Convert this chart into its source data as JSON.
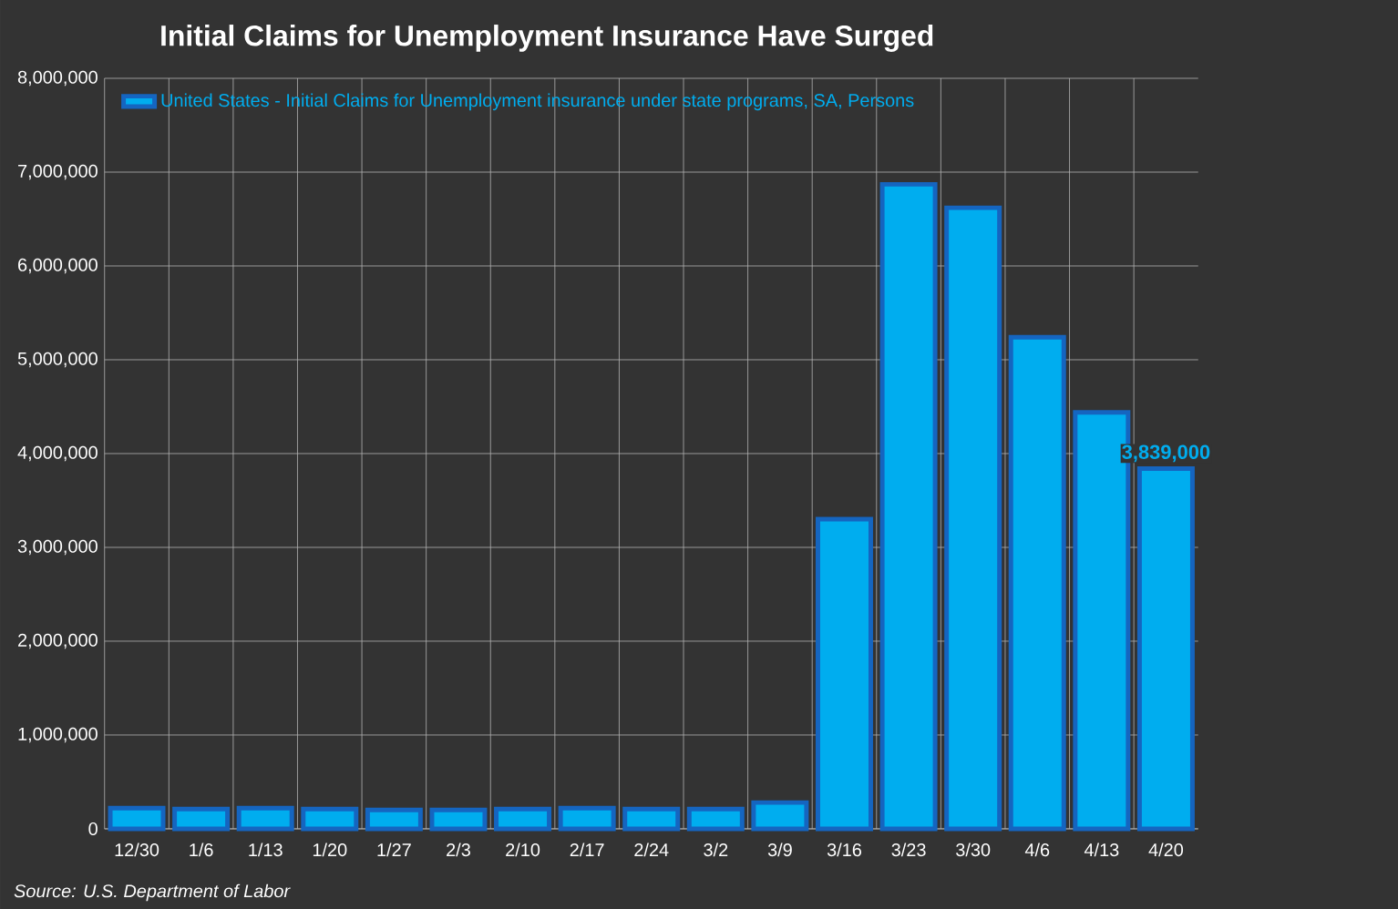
{
  "chart_data": {
    "type": "bar",
    "title": "Initial Claims for Unemployment Insurance Have Surged",
    "categories": [
      "12/30",
      "1/6",
      "1/13",
      "1/20",
      "1/27",
      "2/3",
      "2/10",
      "2/17",
      "2/24",
      "3/2",
      "3/9",
      "3/16",
      "3/23",
      "3/30",
      "4/6",
      "4/13",
      "4/20"
    ],
    "series": [
      {
        "name": "United States - Initial Claims for Unemployment insurance under state programs, SA, Persons",
        "color": "#00adef",
        "values": [
          220000,
          210000,
          220000,
          210000,
          200000,
          200000,
          210000,
          220000,
          210000,
          210000,
          280000,
          3300000,
          6870000,
          6620000,
          5240000,
          4440000,
          3839000
        ],
        "value_labels": [
          null,
          null,
          null,
          null,
          null,
          null,
          null,
          null,
          null,
          null,
          null,
          null,
          null,
          null,
          null,
          null,
          "3,839,000"
        ]
      }
    ],
    "ylim": [
      0,
      8000000
    ],
    "yticks": [
      {
        "value": 0,
        "label": "0"
      },
      {
        "value": 1000000,
        "label": "1,000,000"
      },
      {
        "value": 2000000,
        "label": "2,000,000"
      },
      {
        "value": 3000000,
        "label": "3,000,000"
      },
      {
        "value": 4000000,
        "label": "4,000,000"
      },
      {
        "value": 5000000,
        "label": "5,000,000"
      },
      {
        "value": 6000000,
        "label": "6,000,000"
      },
      {
        "value": 7000000,
        "label": "7,000,000"
      },
      {
        "value": 8000000,
        "label": "8,000,000"
      }
    ],
    "grid": true,
    "legend": "top left",
    "annotations": [
      "Source: U.S. Department of Labor"
    ]
  }
}
